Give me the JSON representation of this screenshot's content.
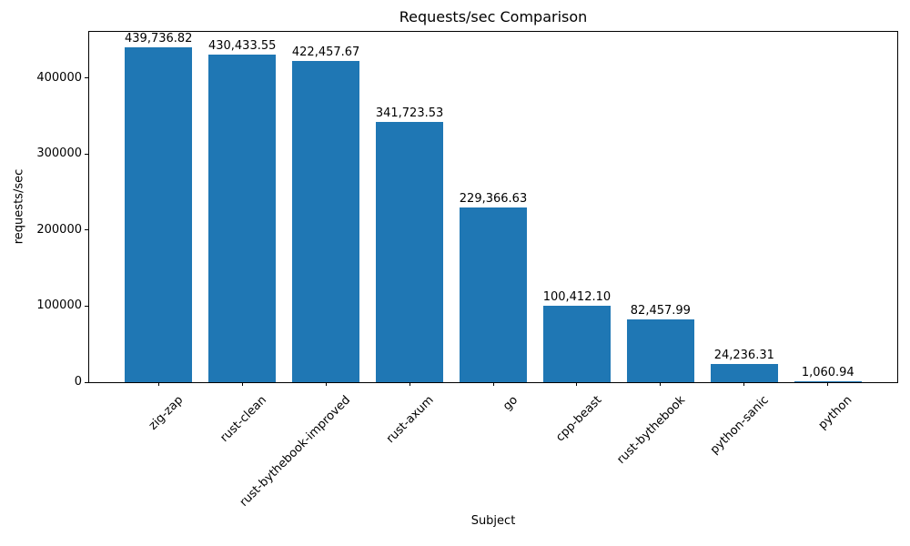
{
  "chart_data": {
    "type": "bar",
    "title": "Requests/sec Comparison",
    "xlabel": "Subject",
    "ylabel": "requests/sec",
    "categories": [
      "zig-zap",
      "rust-clean",
      "rust-bythebook-improved",
      "rust-axum",
      "go",
      "cpp-beast",
      "rust-bythebook",
      "python-sanic",
      "python"
    ],
    "values": [
      439736.82,
      430433.55,
      422457.67,
      341723.53,
      229366.63,
      100412.1,
      82457.99,
      24236.31,
      1060.94
    ],
    "value_labels": [
      "439,736.82",
      "430,433.55",
      "422,457.67",
      "341,723.53",
      "229,366.63",
      "100,412.10",
      "82,457.99",
      "24,236.31",
      "1,060.94"
    ],
    "ylim": [
      0,
      461724
    ],
    "yticks": [
      0,
      100000,
      200000,
      300000,
      400000
    ],
    "ytick_labels": [
      "0",
      "100000",
      "200000",
      "300000",
      "400000"
    ],
    "bar_color": "#1f77b4",
    "text_color": "#000000",
    "grid": false,
    "legend_position": "none",
    "xtick_rotation_deg": 45
  }
}
